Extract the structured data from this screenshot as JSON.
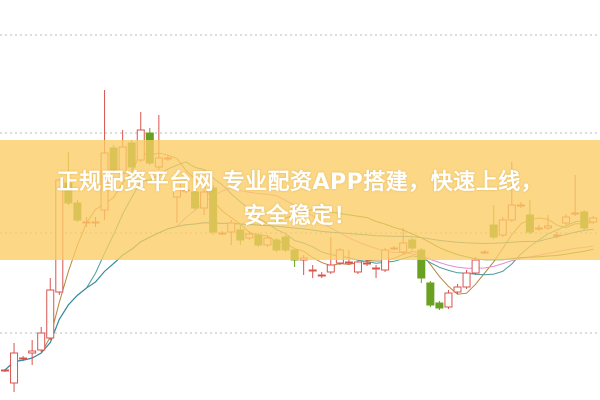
{
  "banner": {
    "line1": "正规配资平台网 专业配资APP搭建，快速上线，",
    "line2": "安全稳定！"
  },
  "chart_data": {
    "type": "candlestick",
    "title": "",
    "xlabel": "",
    "ylabel": "",
    "ylim": [
      20,
      60
    ],
    "grid": {
      "horizontal": true,
      "style": "dotted",
      "levels": [
        56.5,
        46.7,
        36.7,
        26.7
      ]
    },
    "colors": {
      "up": "#d9534f",
      "down": "#6aa121",
      "grid": "#bbbbbb"
    },
    "moving_averages": [
      {
        "period": 5,
        "color": "#b7853a"
      },
      {
        "period": 10,
        "color": "#4a9a9a"
      },
      {
        "period": 20,
        "color": "#e28ad8"
      },
      {
        "period": 30,
        "color": "#5b8a2d"
      },
      {
        "period": 60,
        "color": "#2f8fb0"
      }
    ],
    "candles": [
      [
        22.9,
        23.0,
        23.1,
        22.8
      ],
      [
        21.7,
        24.7,
        25.7,
        20.8
      ],
      [
        24.2,
        24.2,
        24.4,
        24.0
      ],
      [
        24.7,
        24.9,
        26.0,
        23.5
      ],
      [
        25.0,
        26.7,
        27.3,
        24.8
      ],
      [
        26.2,
        31.0,
        32.2,
        26.0
      ],
      [
        30.8,
        42.0,
        42.0,
        30.5
      ],
      [
        41.7,
        39.7,
        44.8,
        39.5
      ],
      [
        39.7,
        38.0,
        40.0,
        37.8
      ],
      [
        37.8,
        37.8,
        38.3,
        37.3
      ],
      [
        37.8,
        37.8,
        38.3,
        37.3
      ],
      [
        39.0,
        44.7,
        51.0,
        38.0
      ],
      [
        45.2,
        43.0,
        45.5,
        42.8
      ],
      [
        42.7,
        45.3,
        47.0,
        42.5
      ],
      [
        45.7,
        43.3,
        46.0,
        43.0
      ],
      [
        44.0,
        47.0,
        48.8,
        43.8
      ],
      [
        46.7,
        43.7,
        47.2,
        43.5
      ],
      [
        43.3,
        44.2,
        48.5,
        43.0
      ],
      [
        44.2,
        44.2,
        44.5,
        43.9
      ],
      [
        40.3,
        41.7,
        42.0,
        37.7
      ],
      [
        41.0,
        41.0,
        41.3,
        40.7
      ],
      [
        40.8,
        39.2,
        41.0,
        39.0
      ],
      [
        39.2,
        40.8,
        41.0,
        38.5
      ],
      [
        41.2,
        36.8,
        41.5,
        36.5
      ],
      [
        36.7,
        36.7,
        36.9,
        36.5
      ],
      [
        36.8,
        37.7,
        38.0,
        35.5
      ],
      [
        37.0,
        36.0,
        37.5,
        35.5
      ],
      [
        36.2,
        36.6,
        36.9,
        36.0
      ],
      [
        36.5,
        35.5,
        36.7,
        35.3
      ],
      [
        35.5,
        36.2,
        36.5,
        35.3
      ],
      [
        36.0,
        35.0,
        36.2,
        34.8
      ],
      [
        36.3,
        35.0,
        36.5,
        34.8
      ],
      [
        35.0,
        34.0,
        35.0,
        33.3
      ],
      [
        34.0,
        34.2,
        34.5,
        32.5
      ],
      [
        33.0,
        33.0,
        33.5,
        32.2
      ],
      [
        32.5,
        32.5,
        32.8,
        32.2
      ],
      [
        32.8,
        33.5,
        36.3,
        32.6
      ],
      [
        33.7,
        35.0,
        35.2,
        33.5
      ],
      [
        33.8,
        33.8,
        35.0,
        33.5
      ],
      [
        32.8,
        33.8,
        34.0,
        32.6
      ],
      [
        33.7,
        33.7,
        34.0,
        33.4
      ],
      [
        33.2,
        33.2,
        33.5,
        32.2
      ],
      [
        33.0,
        35.0,
        35.2,
        32.8
      ],
      [
        35.2,
        35.2,
        35.4,
        35.0
      ],
      [
        34.8,
        35.7,
        37.2,
        34.6
      ],
      [
        36.0,
        35.2,
        36.2,
        35.0
      ],
      [
        35.0,
        32.2,
        35.2,
        31.7
      ],
      [
        31.7,
        29.5,
        31.9,
        29.3
      ],
      [
        29.7,
        29.2,
        29.9,
        29.0
      ],
      [
        29.3,
        30.7,
        31.0,
        29.1
      ],
      [
        30.8,
        31.3,
        31.6,
        30.6
      ],
      [
        31.3,
        32.7,
        33.0,
        31.1
      ],
      [
        32.7,
        34.0,
        34.3,
        32.5
      ],
      [
        34.8,
        34.8,
        35.0,
        34.6
      ],
      [
        37.5,
        36.3,
        39.5,
        36.1
      ],
      [
        36.5,
        38.0,
        38.3,
        36.3
      ],
      [
        38.0,
        39.5,
        43.8,
        37.8
      ],
      [
        39.5,
        39.5,
        39.8,
        39.2
      ],
      [
        38.5,
        36.8,
        40.0,
        36.6
      ],
      [
        37.2,
        37.2,
        37.5,
        36.9
      ],
      [
        37.2,
        37.4,
        38.5,
        37.0
      ],
      [
        36.5,
        36.5,
        36.8,
        36.2
      ],
      [
        37.7,
        38.3,
        38.6,
        37.5
      ],
      [
        38.7,
        38.7,
        42.5,
        38.4
      ],
      [
        38.8,
        37.2,
        39.0,
        37.0
      ],
      [
        37.8,
        38.2,
        38.4,
        37.6
      ]
    ]
  }
}
